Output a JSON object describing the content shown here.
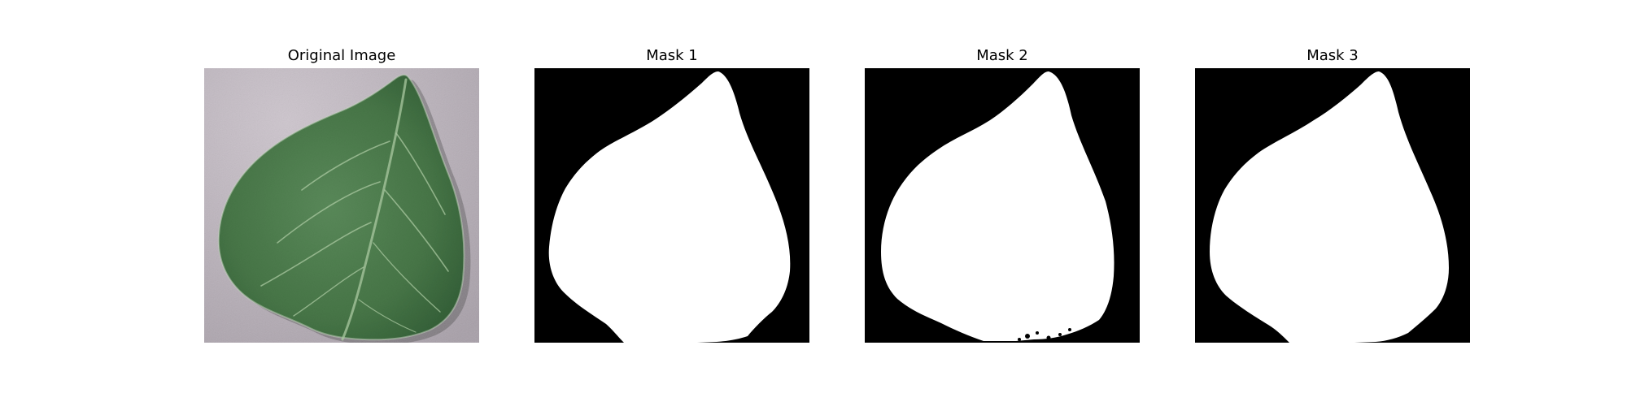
{
  "figure": {
    "panels": [
      {
        "title": "Original Image",
        "kind": "photo",
        "subject": "leaf"
      },
      {
        "title": "Mask 1",
        "kind": "binary-mask",
        "subject": "leaf"
      },
      {
        "title": "Mask 2",
        "kind": "binary-mask",
        "subject": "leaf"
      },
      {
        "title": "Mask 3",
        "kind": "binary-mask",
        "subject": "leaf"
      }
    ]
  },
  "colors": {
    "page_background": "#ffffff",
    "mask_foreground": "#ffffff",
    "mask_background": "#000000",
    "photo_background": "#b4acb4",
    "leaf_green": "#4a7a4c",
    "leaf_dark": "#2f5a34",
    "vein": "#a9c8a0"
  }
}
